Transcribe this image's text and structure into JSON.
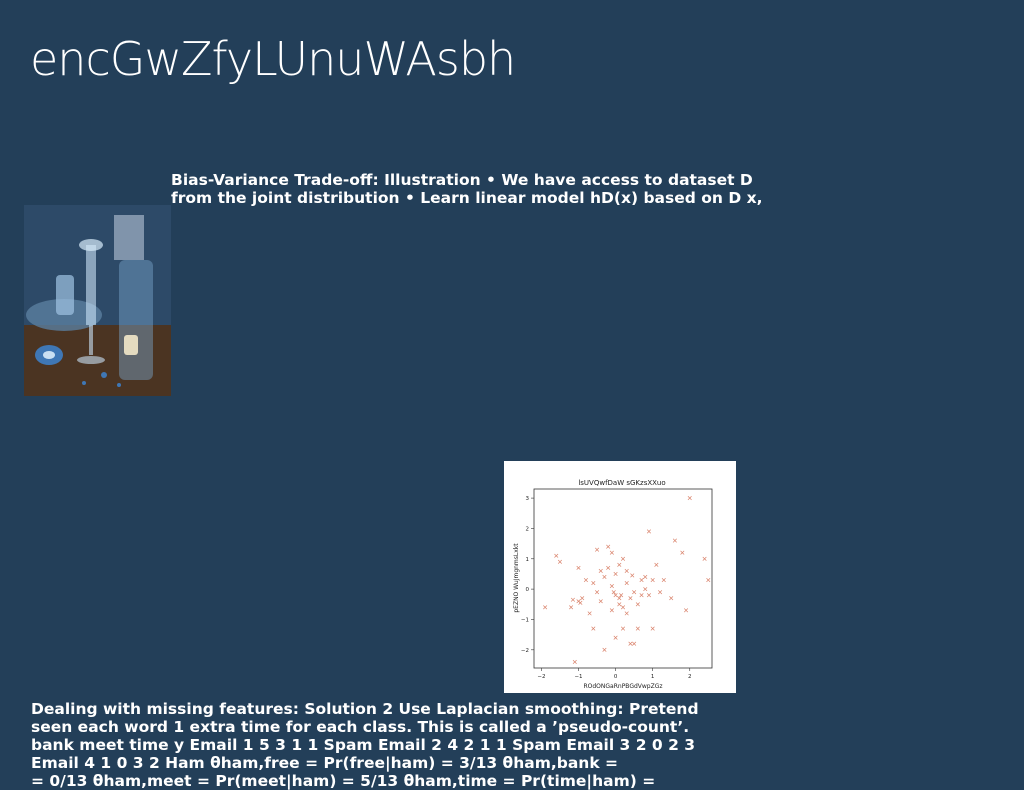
{
  "slide": {
    "title": "encGwZfyLUnuWAsbh",
    "top_text": "Bias-Variance Trade-off: Illustration • We have access to dataset D\nfrom the joint distribution • Learn linear model hD(x) based on D x,",
    "bottom_text": "Dealing with missing features: Solution 2 Use Laplacian smoothing: Pretend\nseen each word 1 extra time for each class. This is called a ’pseudo-count’.\nbank meet time y Email 1 5 3 1 1 Spam Email 2 4 2 1 1 Spam Email 3 2 0 2 3\nEmail 4 1 0 3 2 Ham θham,free = Pr(free|ham) = 3/13 θham,bank =\n= 0/13 θham,meet = Pr(meet|ham) = 5/13 θham,time = Pr(time|ham) ="
  },
  "colors": {
    "background": "#233f59",
    "marker": "#d9826a"
  },
  "chart_data": {
    "type": "scatter",
    "title": "lsUVQwfDaW sGKzsXXuo",
    "xlabel": "ROdONGaRnPBGdVwpZGz",
    "ylabel": "pEZNO WuJmgnmsLxkt",
    "xlim": [
      -2.2,
      2.6
    ],
    "ylim": [
      -2.6,
      3.3
    ],
    "xticks": [
      "−2",
      "−1",
      "0",
      "1",
      "2"
    ],
    "yticks": [
      "−2",
      "−1",
      "0",
      "1",
      "2",
      "3"
    ],
    "marker": "x",
    "x": [
      -1.9,
      -1.6,
      -1.5,
      -1.2,
      -1.1,
      -1.0,
      -1.0,
      -0.9,
      -0.8,
      -0.7,
      -0.6,
      -0.6,
      -0.5,
      -0.5,
      -0.4,
      -0.4,
      -0.3,
      -0.3,
      -0.2,
      -0.2,
      -0.1,
      -0.1,
      -0.1,
      0.0,
      0.0,
      0.0,
      0.1,
      0.1,
      0.1,
      0.2,
      0.2,
      0.2,
      0.3,
      0.3,
      0.3,
      0.4,
      0.4,
      0.5,
      0.5,
      0.6,
      0.6,
      0.7,
      0.7,
      0.8,
      0.8,
      0.9,
      0.9,
      1.0,
      1.0,
      1.1,
      1.2,
      1.3,
      1.5,
      1.6,
      1.8,
      1.9,
      2.0,
      2.4,
      2.5,
      -1.15,
      -0.95,
      0.15,
      0.45,
      -0.05
    ],
    "y": [
      -0.6,
      1.1,
      0.9,
      -0.6,
      -2.4,
      0.7,
      -0.4,
      -0.3,
      0.3,
      -0.8,
      0.2,
      -1.3,
      1.3,
      -0.1,
      0.6,
      -0.4,
      0.4,
      -2.0,
      0.7,
      1.4,
      0.1,
      -0.7,
      1.2,
      -0.2,
      -1.6,
      0.5,
      -0.3,
      -0.5,
      0.8,
      1.0,
      -0.6,
      -1.3,
      0.2,
      -0.8,
      0.6,
      -1.8,
      -0.3,
      -0.1,
      -1.8,
      -1.3,
      -0.5,
      0.3,
      -0.2,
      0.0,
      0.4,
      1.9,
      -0.2,
      0.3,
      -1.3,
      0.8,
      -0.1,
      0.3,
      -0.3,
      1.6,
      1.2,
      -0.7,
      3.0,
      1.0,
      0.3,
      -0.35,
      -0.45,
      -0.2,
      0.45,
      -0.1
    ],
    "grid": false
  }
}
